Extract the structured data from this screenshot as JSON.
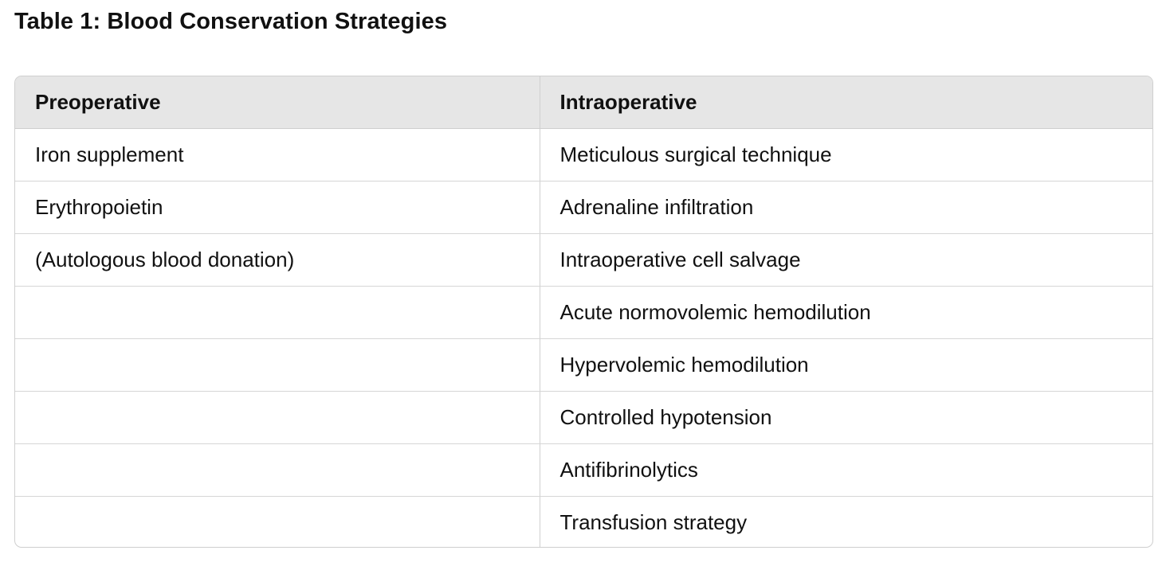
{
  "title": "Table 1: Blood Conservation Strategies",
  "table": {
    "headers": [
      "Preoperative",
      "Intraoperative"
    ],
    "rows": [
      [
        "Iron supplement",
        "Meticulous surgical technique"
      ],
      [
        "Erythropoietin",
        "Adrenaline infiltration"
      ],
      [
        "(Autologous blood donation)",
        "Intraoperative cell salvage"
      ],
      [
        "",
        "Acute normovolemic hemodilution"
      ],
      [
        "",
        "Hypervolemic hemodilution"
      ],
      [
        "",
        "Controlled hypotension"
      ],
      [
        "",
        "Antifibrinolytics"
      ],
      [
        "",
        "Transfusion strategy"
      ]
    ]
  }
}
